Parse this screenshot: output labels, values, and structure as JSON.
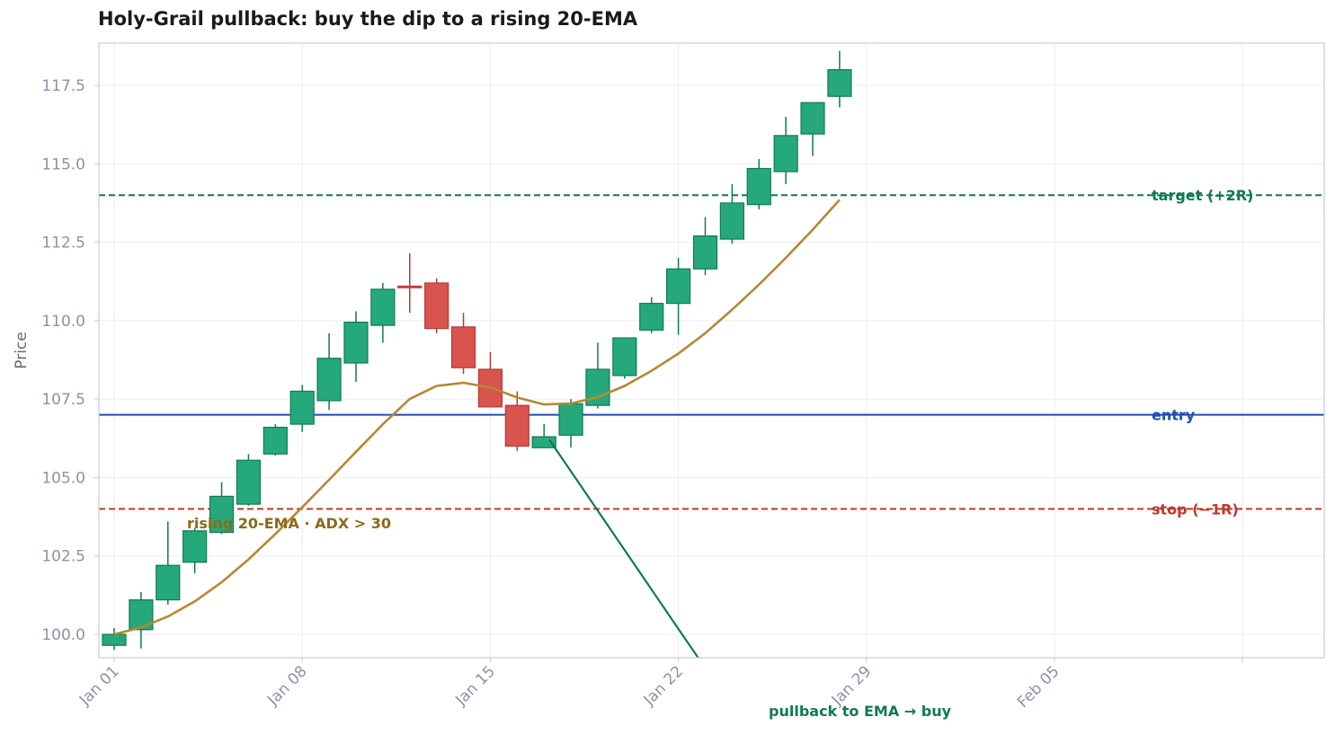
{
  "chart_data": {
    "type": "candlestick",
    "title": "Holy-Grail pullback: buy the dip to a rising 20-EMA",
    "ylabel": "Price",
    "xlabel": "",
    "xlim": [
      "2023-12-31",
      "2024-02-11"
    ],
    "ylim": [
      99.2,
      118.8
    ],
    "grid": true,
    "y_ticks": [
      100.0,
      102.5,
      105.0,
      107.5,
      110.0,
      112.5,
      115.0,
      117.5
    ],
    "y_tick_labels": [
      "100.0",
      "102.5",
      "105.0",
      "107.5",
      "110.0",
      "112.5",
      "115.0",
      "117.5"
    ],
    "x_ticks": [
      "2024-01-01",
      "2024-01-08",
      "2024-01-15",
      "2024-01-22",
      "2024-01-29",
      "2024-02-05",
      "2024-02-12"
    ],
    "x_tick_labels": [
      "Jan 01",
      "Jan 08",
      "Jan 15",
      "Jan 22",
      "Jan 29",
      "Feb 05",
      ""
    ],
    "candles": [
      {
        "date": "2024-01-01",
        "open": 99.65,
        "high": 100.2,
        "low": 99.5,
        "close": 100.0
      },
      {
        "date": "2024-01-02",
        "open": 100.15,
        "high": 101.35,
        "low": 99.55,
        "close": 101.1
      },
      {
        "date": "2024-01-03",
        "open": 101.1,
        "high": 103.6,
        "low": 100.95,
        "close": 102.2
      },
      {
        "date": "2024-01-04",
        "open": 102.3,
        "high": 103.4,
        "low": 101.95,
        "close": 103.3
      },
      {
        "date": "2024-01-05",
        "open": 103.25,
        "high": 104.85,
        "low": 103.2,
        "close": 104.4
      },
      {
        "date": "2024-01-06",
        "open": 104.15,
        "high": 105.75,
        "low": 104.1,
        "close": 105.55
      },
      {
        "date": "2024-01-07",
        "open": 105.75,
        "high": 106.7,
        "low": 105.7,
        "close": 106.6
      },
      {
        "date": "2024-01-08",
        "open": 106.7,
        "high": 107.95,
        "low": 106.45,
        "close": 107.75
      },
      {
        "date": "2024-01-09",
        "open": 107.45,
        "high": 109.6,
        "low": 107.15,
        "close": 108.8
      },
      {
        "date": "2024-01-10",
        "open": 108.65,
        "high": 110.3,
        "low": 108.05,
        "close": 109.95
      },
      {
        "date": "2024-01-11",
        "open": 109.85,
        "high": 111.2,
        "low": 109.3,
        "close": 111.0
      },
      {
        "date": "2024-01-12",
        "open": 111.1,
        "high": 112.15,
        "low": 110.25,
        "close": 111.05
      },
      {
        "date": "2024-01-13",
        "open": 111.2,
        "high": 111.35,
        "low": 109.6,
        "close": 109.75
      },
      {
        "date": "2024-01-14",
        "open": 109.8,
        "high": 110.25,
        "low": 108.3,
        "close": 108.5
      },
      {
        "date": "2024-01-15",
        "open": 108.45,
        "high": 109.0,
        "low": 107.25,
        "close": 107.25
      },
      {
        "date": "2024-01-16",
        "open": 107.3,
        "high": 107.75,
        "low": 105.85,
        "close": 106.0
      },
      {
        "date": "2024-01-17",
        "open": 105.95,
        "high": 106.7,
        "low": 105.95,
        "close": 106.3
      },
      {
        "date": "2024-01-18",
        "open": 106.35,
        "high": 107.5,
        "low": 105.95,
        "close": 107.35
      },
      {
        "date": "2024-01-19",
        "open": 107.3,
        "high": 109.3,
        "low": 107.2,
        "close": 108.45
      },
      {
        "date": "2024-01-20",
        "open": 108.25,
        "high": 109.45,
        "low": 108.15,
        "close": 109.45
      },
      {
        "date": "2024-01-21",
        "open": 109.7,
        "high": 110.75,
        "low": 109.6,
        "close": 110.55
      },
      {
        "date": "2024-01-22",
        "open": 110.55,
        "high": 112.0,
        "low": 109.55,
        "close": 111.65
      },
      {
        "date": "2024-01-23",
        "open": 111.65,
        "high": 113.3,
        "low": 111.45,
        "close": 112.7
      },
      {
        "date": "2024-01-24",
        "open": 112.6,
        "high": 114.35,
        "low": 112.45,
        "close": 113.75
      },
      {
        "date": "2024-01-25",
        "open": 113.7,
        "high": 115.15,
        "low": 113.55,
        "close": 114.85
      },
      {
        "date": "2024-01-26",
        "open": 114.75,
        "high": 116.5,
        "low": 114.35,
        "close": 115.9
      },
      {
        "date": "2024-01-27",
        "open": 115.95,
        "high": 116.95,
        "low": 115.25,
        "close": 116.95
      },
      {
        "date": "2024-01-28",
        "open": 117.15,
        "high": 118.6,
        "low": 116.8,
        "close": 118.0
      }
    ],
    "ema": {
      "name": "20-EMA",
      "color": "#b5892f",
      "dates": [
        "2024-01-01",
        "2024-01-02",
        "2024-01-03",
        "2024-01-04",
        "2024-01-05",
        "2024-01-06",
        "2024-01-07",
        "2024-01-08",
        "2024-01-09",
        "2024-01-10",
        "2024-01-11",
        "2024-01-12",
        "2024-01-13",
        "2024-01-14",
        "2024-01-15",
        "2024-01-16",
        "2024-01-17",
        "2024-01-18",
        "2024-01-19",
        "2024-01-20",
        "2024-01-21",
        "2024-01-22",
        "2024-01-23",
        "2024-01-24",
        "2024-01-25",
        "2024-01-26",
        "2024-01-27",
        "2024-01-28"
      ],
      "values": [
        100.0,
        100.22,
        100.57,
        101.05,
        101.66,
        102.39,
        103.2,
        104.05,
        104.93,
        105.82,
        106.7,
        107.5,
        107.92,
        108.02,
        107.87,
        107.55,
        107.33,
        107.36,
        107.56,
        107.92,
        108.4,
        108.95,
        109.6,
        110.35,
        111.15,
        112.0,
        112.9,
        113.85
      ]
    },
    "levels": [
      {
        "name": "target",
        "value": 114.0,
        "label": "target  (+2R)",
        "color": "#0f7a55",
        "style": "dashed"
      },
      {
        "name": "entry",
        "value": 107.0,
        "label": "entry",
        "color": "#1f4fb0",
        "style": "solid"
      },
      {
        "name": "stop",
        "value": 104.0,
        "label": "stop  (−1R)",
        "color": "#c0392b",
        "style": "dashed"
      }
    ],
    "annotations": [
      {
        "text": "rising 20-EMA  ·  ADX > 30",
        "date": "2024-01-02",
        "price": 103.55,
        "color": "#8b6a1a"
      },
      {
        "text": "pullback to EMA → buy",
        "date": "2024-01-24",
        "price": 98.8,
        "color": "#0f7a55",
        "arrow_to": {
          "date": "2024-01-17",
          "price": 106.2
        },
        "arrow_from": {
          "date": "2024-01-23",
          "price": 99.2
        }
      }
    ],
    "colors": {
      "up": "#26a97a",
      "up_edge": "#0f7a55",
      "down": "#d9534f",
      "down_edge": "#b73a36",
      "grid": "#ececf1",
      "axis": "#c9ccd6"
    }
  }
}
